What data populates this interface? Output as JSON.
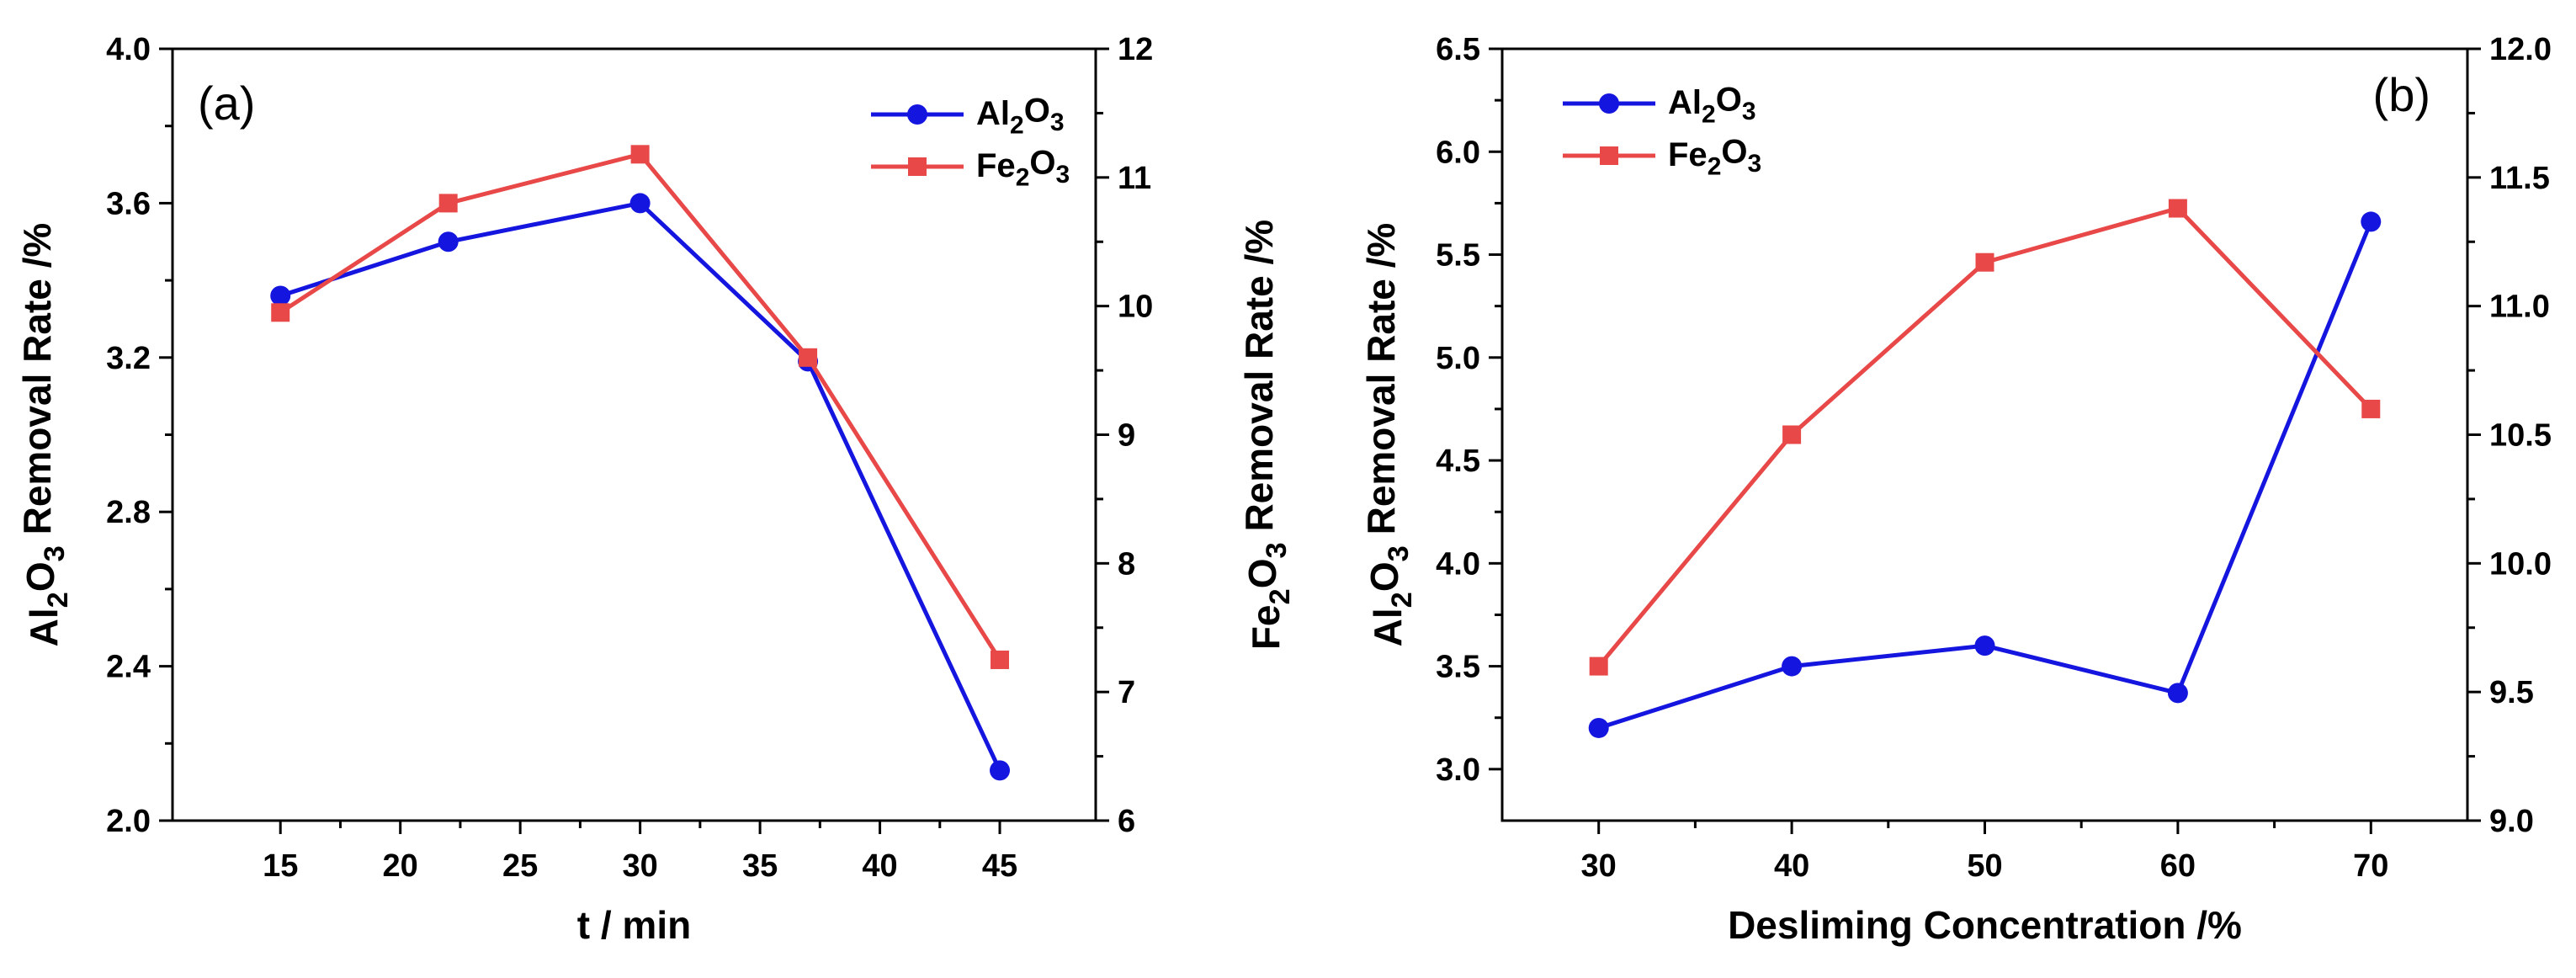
{
  "chart_data": [
    {
      "panel": "(a)",
      "type": "line",
      "x": [
        15,
        22,
        30,
        37,
        45
      ],
      "xlim": [
        10.5,
        49
      ],
      "xticks": [
        15,
        20,
        25,
        30,
        35,
        40,
        45
      ],
      "xlabel": "t / min",
      "series": [
        {
          "name": "Al2O3",
          "axis": "left",
          "color": "#1515e0",
          "marker": "circle",
          "values": [
            3.36,
            3.5,
            3.6,
            3.19,
            2.13
          ]
        },
        {
          "name": "Fe2O3",
          "axis": "right",
          "color": "#e84848",
          "marker": "square",
          "values": [
            9.95,
            10.8,
            11.18,
            9.6,
            7.25
          ]
        }
      ],
      "ylim_left": [
        2.0,
        4.0
      ],
      "yticks_left": [
        "2.0",
        "2.4",
        "2.8",
        "3.2",
        "3.6",
        "4.0"
      ],
      "ylim_right": [
        6,
        12
      ],
      "yticks_right": [
        "6",
        "7",
        "8",
        "9",
        "10",
        "11",
        "12"
      ],
      "ylabel_left": {
        "pre": "Al",
        "s1": "2",
        "mid": "O",
        "s2": "3",
        "post": " Removal Rate /%"
      },
      "ylabel_right": {
        "pre": "Fe",
        "s1": "2",
        "mid": "O",
        "s2": "3",
        "post": " Removal Rate /%"
      },
      "legend": [
        {
          "pre": "Al",
          "s1": "2",
          "mid": "O",
          "s2": "3"
        },
        {
          "pre": "Fe",
          "s1": "2",
          "mid": "O",
          "s2": "3"
        }
      ],
      "legend_position": "top-right",
      "label_position": "top-left"
    },
    {
      "panel": "(b)",
      "type": "line",
      "x": [
        30,
        40,
        50,
        60,
        70
      ],
      "xlim": [
        25,
        75
      ],
      "xticks": [
        30,
        40,
        50,
        60,
        70
      ],
      "xlabel": "Desliming Concentration /%",
      "series": [
        {
          "name": "Al2O3",
          "axis": "left",
          "color": "#1515e0",
          "marker": "circle",
          "values": [
            3.2,
            3.5,
            3.6,
            3.37,
            5.66
          ]
        },
        {
          "name": "Fe2O3",
          "axis": "right",
          "color": "#e84848",
          "marker": "square",
          "values": [
            9.6,
            10.5,
            11.17,
            11.38,
            10.6
          ]
        }
      ],
      "ylim_left": [
        2.75,
        6.5
      ],
      "yticks_left": [
        "3.0",
        "3.5",
        "4.0",
        "4.5",
        "5.0",
        "5.5",
        "6.0",
        "6.5"
      ],
      "ylim_right": [
        9.0,
        12.0
      ],
      "yticks_right": [
        "9.0",
        "9.5",
        "10.0",
        "10.5",
        "11.0",
        "11.5",
        "12.0"
      ],
      "ylabel_left": {
        "pre": "Al",
        "s1": "2",
        "mid": "O",
        "s2": "3",
        "post": " Removal Rate /%"
      },
      "legend": [
        {
          "pre": "Al",
          "s1": "2",
          "mid": "O",
          "s2": "3"
        },
        {
          "pre": "Fe",
          "s1": "2",
          "mid": "O",
          "s2": "3"
        }
      ],
      "legend_position": "top-left",
      "label_position": "top-right"
    }
  ]
}
